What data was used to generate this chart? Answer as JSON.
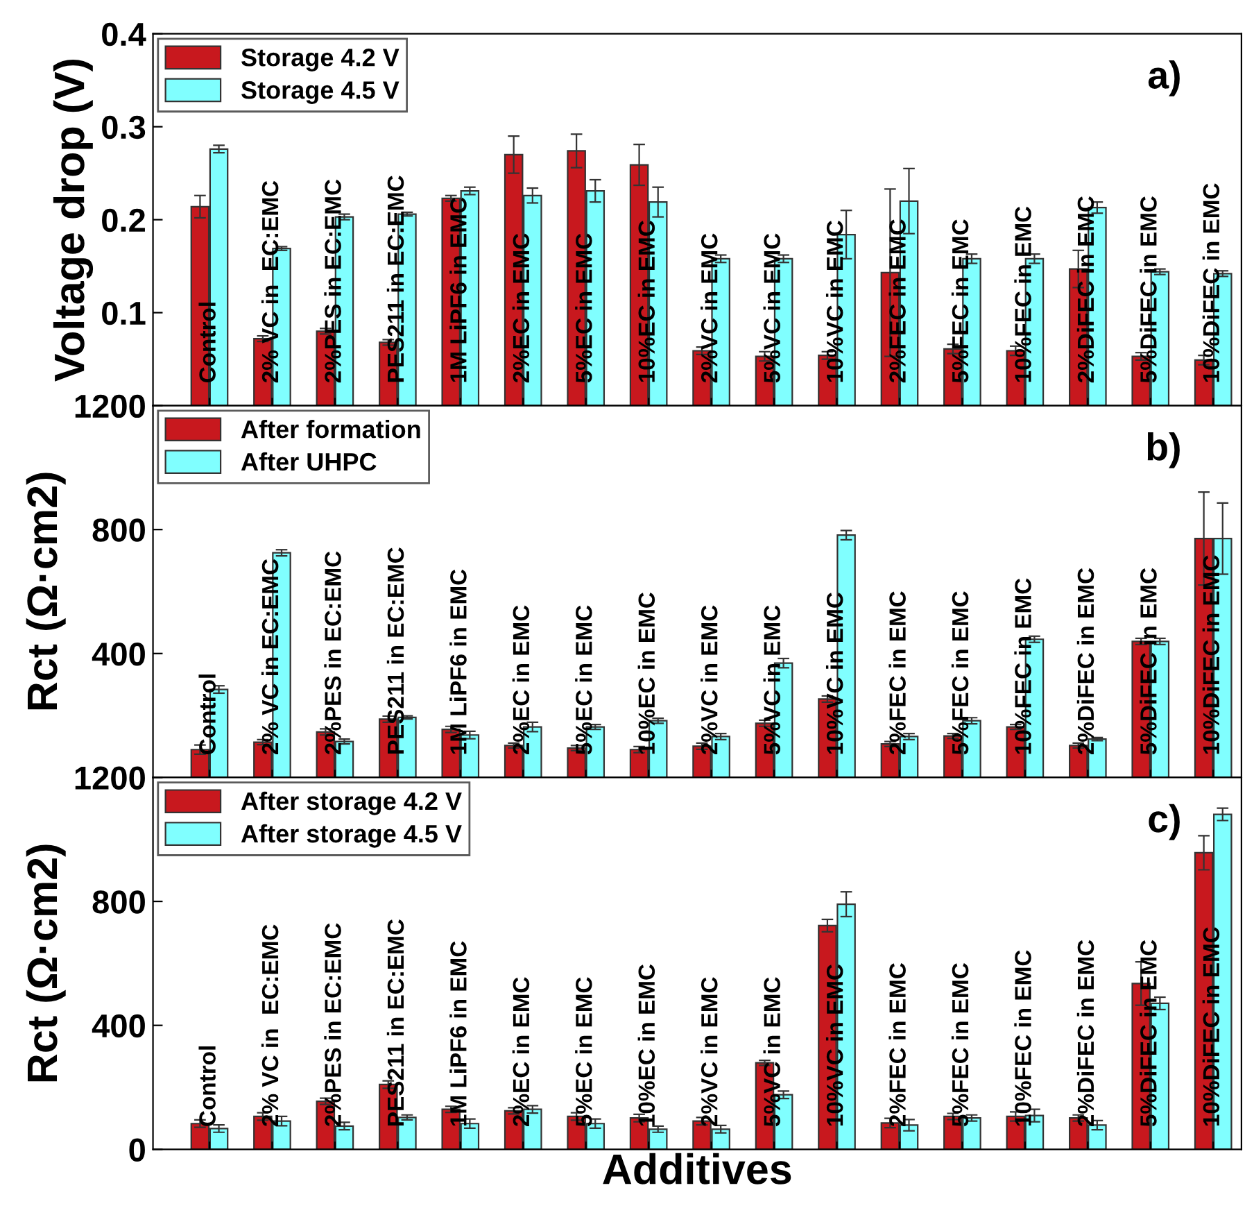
{
  "chart_data": [
    {
      "type": "bar",
      "xlabel": null,
      "ylabel": "Voltage drop (V)",
      "annotations": [
        "a)"
      ],
      "categories": [
        "Control",
        "2% VC in  EC:EMC",
        "2%PES in EC:EMC",
        "PES211 in EC:EMC",
        "1M LiPF6 in EMC",
        "2%EC in EMC",
        "5%EC in EMC",
        "10%EC in EMC",
        "2%VC in EMC",
        "5%VC in EMC",
        "10%VC in EMC",
        "2%FEC in EMC",
        "5%FEC in EMC",
        "10%FEC in EMC",
        "2%DiFEC in EMC",
        "5%DiFEC in EMC",
        "10%DiFEC in EMC"
      ],
      "series": [
        {
          "name": "Storage 4.2 V",
          "color": "#c8181e",
          "values": [
            0.214,
            0.072,
            0.08,
            0.068,
            0.223,
            0.27,
            0.274,
            0.259,
            0.059,
            0.053,
            0.054,
            0.143,
            0.061,
            0.059,
            0.147,
            0.053,
            0.049
          ],
          "errors": [
            0.012,
            0.003,
            0.003,
            0.003,
            0.003,
            0.02,
            0.018,
            0.022,
            0.004,
            0.005,
            0.004,
            0.09,
            0.005,
            0.005,
            0.02,
            0.004,
            0.005
          ]
        },
        {
          "name": "Storage 4.5 V",
          "color": "#80ffff",
          "values": [
            0.276,
            0.169,
            0.203,
            0.206,
            0.231,
            0.226,
            0.231,
            0.219,
            0.158,
            0.158,
            0.184,
            0.22,
            0.158,
            0.158,
            0.213,
            0.144,
            0.142
          ],
          "errors": [
            0.004,
            0.002,
            0.003,
            0.002,
            0.004,
            0.008,
            0.012,
            0.016,
            0.004,
            0.004,
            0.026,
            0.035,
            0.005,
            0.005,
            0.006,
            0.003,
            0.003
          ]
        }
      ],
      "ylim": [
        0,
        0.4
      ],
      "yticks": [
        {
          "value": 0,
          "label": null
        },
        0.1,
        0.2,
        0.3,
        0.4
      ],
      "tick_labels": "y",
      "legend": "top left",
      "grid": false
    },
    {
      "type": "bar",
      "ylabel": "Rct (Ω·cm2)",
      "annotations": [
        "b)"
      ],
      "categories": [
        "Control",
        "2% VC in EC:EMC",
        "2%PES in EC:EMC",
        "PES211 in EC:EMC",
        "1M LiPF6 in EMC",
        "2%EC in EMC",
        "5%EC in EMC",
        "10%EC in EMC",
        "2%VC in EMC",
        "5%VC in EMC",
        "10%VC in EMC",
        "2%FEC in EMC",
        "5%FEC in EMC",
        "10%FEC in EMC",
        "2%DiFEC in EMC",
        "5%DiFEC in EMC",
        "10%DiFEC in EMC"
      ],
      "series": [
        {
          "name": "After formation",
          "color": "#c8181e",
          "values": [
            90,
            114,
            147,
            188,
            155,
            103,
            95,
            90,
            101,
            175,
            253,
            108,
            134,
            163,
            103,
            439,
            771
          ],
          "errors": [
            15,
            8,
            10,
            10,
            10,
            8,
            8,
            10,
            10,
            10,
            10,
            8,
            8,
            8,
            8,
            10,
            150
          ]
        },
        {
          "name": "After UHPC",
          "color": "#80ffff",
          "values": [
            284,
            725,
            116,
            194,
            137,
            163,
            163,
            183,
            132,
            369,
            782,
            132,
            183,
            446,
            124,
            439,
            771
          ],
          "errors": [
            12,
            10,
            8,
            5,
            12,
            15,
            8,
            8,
            10,
            15,
            15,
            10,
            10,
            10,
            5,
            10,
            115
          ]
        }
      ],
      "ylim": [
        0,
        1200
      ],
      "yticks": [
        {
          "value": 0,
          "label": null
        },
        400,
        800,
        1200
      ],
      "tick_labels": "y",
      "legend": "top left",
      "grid": false
    },
    {
      "type": "bar",
      "xlabel": "Additives",
      "ylabel": "Rct (Ω·cm2)",
      "annotations": [
        "c)"
      ],
      "categories": [
        "Control",
        "2% VC in  EC:EMC",
        "2%PES in EC:EMC",
        "PES211 in EC:EMC",
        "1M LiPF6 in EMC",
        "2%EC in EMC",
        "5%EC in EMC",
        "10%EC in EMC",
        "2%VC in EMC",
        "5%VC in EMC",
        "10%VC in EMC",
        "2%FEC in EMC",
        "5%FEC in EMC",
        "10%FEC in EMC",
        "2%DiFEC in EMC",
        "5%DiFEC in EMC",
        "10%DiFEC in EMC"
      ],
      "series": [
        {
          "name": "After storage 4.2 V",
          "color": "#c8181e",
          "values": [
            83,
            106,
            155,
            209,
            129,
            124,
            106,
            101,
            91,
            279,
            722,
            85,
            106,
            106,
            101,
            535,
            957
          ],
          "errors": [
            12,
            12,
            10,
            12,
            10,
            10,
            12,
            12,
            12,
            8,
            20,
            15,
            10,
            15,
            10,
            70,
            55
          ]
        },
        {
          "name": "After storage 4.5 V",
          "color": "#80ffff",
          "values": [
            67,
            91,
            75,
            103,
            83,
            129,
            83,
            65,
            65,
            176,
            791,
            78,
            101,
            109,
            78,
            471,
            1081
          ],
          "errors": [
            12,
            15,
            12,
            8,
            15,
            12,
            15,
            10,
            12,
            12,
            40,
            18,
            10,
            20,
            15,
            20,
            20
          ]
        }
      ],
      "ylim": [
        0,
        1200
      ],
      "yticks": [
        0,
        400,
        800,
        1200
      ],
      "tick_labels": "y",
      "legend": "top left",
      "grid": false
    }
  ]
}
